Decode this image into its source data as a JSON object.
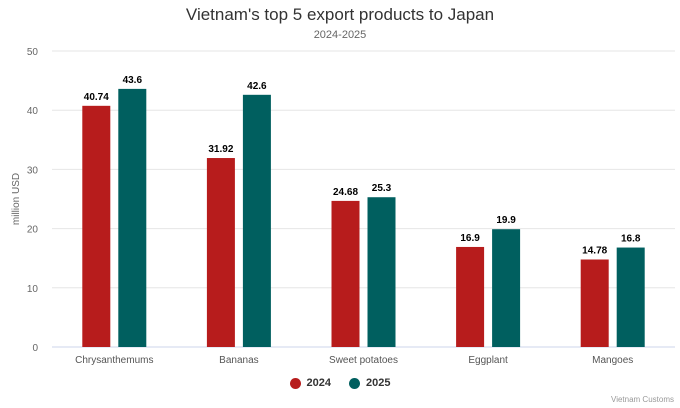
{
  "chart_data": {
    "type": "bar",
    "title": "Vietnam's top 5 export products to Japan",
    "subtitle": "2024-2025",
    "xlabel": "",
    "ylabel": "million USD",
    "ylim": [
      0,
      50
    ],
    "yticks": [
      0,
      10,
      20,
      30,
      40,
      50
    ],
    "grid": true,
    "legend_position": "bottom",
    "categories": [
      "Chrysanthemums",
      "Bananas",
      "Sweet potatoes",
      "Eggplant",
      "Mangoes"
    ],
    "series": [
      {
        "name": "2024",
        "color": "#b71c1c",
        "values": [
          40.74,
          31.92,
          24.68,
          16.9,
          14.78
        ],
        "labels": [
          "40.74",
          "31.92",
          "24.68",
          "16.9",
          "14.78"
        ]
      },
      {
        "name": "2025",
        "color": "#005f5f",
        "values": [
          43.6,
          42.6,
          25.3,
          19.9,
          16.8
        ],
        "labels": [
          "43.6",
          "42.6",
          "25.3",
          "19.9",
          "16.8"
        ]
      }
    ],
    "credit": "Vietnam Customs"
  }
}
